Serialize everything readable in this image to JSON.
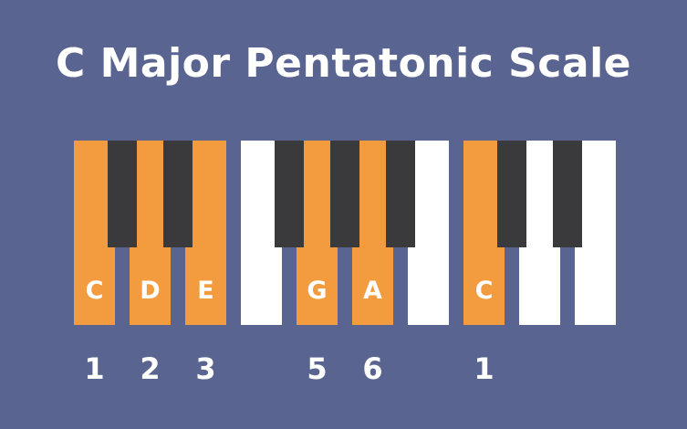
{
  "title": "C Major Pentatonic Scale",
  "colors": {
    "background": "#5a6490",
    "highlight": "#f39c3f",
    "white_key": "#ffffff",
    "black_key": "#3a3a3c"
  },
  "white_keys": [
    {
      "label": "C",
      "highlighted": true
    },
    {
      "label": "D",
      "highlighted": true
    },
    {
      "label": "E",
      "highlighted": true
    },
    {
      "label": "",
      "highlighted": false
    },
    {
      "label": "G",
      "highlighted": true
    },
    {
      "label": "A",
      "highlighted": true
    },
    {
      "label": "",
      "highlighted": false
    },
    {
      "label": "C",
      "highlighted": true
    },
    {
      "label": "",
      "highlighted": false
    },
    {
      "label": "",
      "highlighted": false
    }
  ],
  "black_keys_after_white_index": [
    0,
    1,
    3,
    4,
    5,
    7,
    8
  ],
  "degrees": [
    {
      "white_index": 0,
      "label": "1"
    },
    {
      "white_index": 1,
      "label": "2"
    },
    {
      "white_index": 2,
      "label": "3"
    },
    {
      "white_index": 4,
      "label": "5"
    },
    {
      "white_index": 5,
      "label": "6"
    },
    {
      "white_index": 7,
      "label": "1"
    }
  ]
}
